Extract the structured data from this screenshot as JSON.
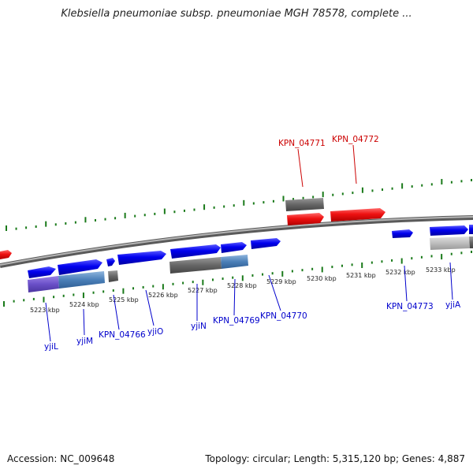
{
  "title": "Klebsiella pneumoniae subsp. pneumoniae MGH 78578, complete ...",
  "footer": {
    "accession": "Accession: NC_009648",
    "topology": "Topology: circular; Length: 5,315,120 bp; Genes: 4,887"
  },
  "colors": {
    "backbone": "#8a8a8a",
    "forward_gene": "#0000ee",
    "reverse_gene": "#ee1111",
    "rna_feature": "#666666",
    "tick": "#1a7a1a",
    "label_forward": "#0000cc",
    "label_reverse": "#cc0000"
  },
  "scale_labels": [
    "5223 kbp",
    "5224 kbp",
    "5225 kbp",
    "5226 kbp",
    "5227 kbp",
    "5228 kbp",
    "5229 kbp",
    "5230 kbp",
    "5231 kbp",
    "5232 kbp",
    "5233 kbp"
  ],
  "gene_labels_forward": [
    "yjiL",
    "yjiM",
    "KPN_04766",
    "yjiO",
    "yjiN",
    "KPN_04769",
    "KPN_04770",
    "KPN_04773",
    "yjiA"
  ],
  "gene_labels_reverse": [
    "KPN_04771",
    "KPN_04772"
  ]
}
